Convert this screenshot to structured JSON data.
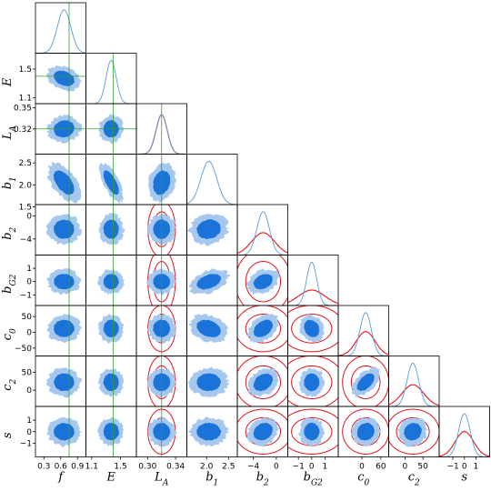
{
  "chart_data": {
    "type": "corner",
    "parameters": [
      {
        "key": "f",
        "label": "f",
        "range": [
          0.15,
          1.05
        ],
        "ticks": [
          0.3,
          0.6,
          0.9
        ],
        "tick_labels": [
          "0.3",
          "0.6",
          "0.9"
        ],
        "mean": 0.66,
        "sd": 0.12,
        "truth": 0.75
      },
      {
        "key": "E",
        "label": "E",
        "range": [
          1.02,
          1.72
        ],
        "ticks": [
          1.1,
          1.5
        ],
        "tick_labels": [
          "1.1",
          "1.5"
        ],
        "mean": 1.37,
        "sd": 0.07,
        "truth": 1.4
      },
      {
        "key": "LA",
        "label": "L",
        "label_sub": "A",
        "range": [
          0.284,
          0.356
        ],
        "ticks": [
          0.3,
          0.34
        ],
        "tick_labels": [
          "0.30",
          "0.34"
        ],
        "y_ticks": [
          0.32,
          0.35
        ],
        "y_tick_labels": [
          "0.32",
          "0.35"
        ],
        "mean": 0.32,
        "sd": 0.008,
        "truth": 0.32
      },
      {
        "key": "b1",
        "label": "b",
        "label_sub": "1",
        "range": [
          1.55,
          2.7
        ],
        "ticks": [
          2.0,
          2.5
        ],
        "tick_labels": [
          "2.0",
          "2.5"
        ],
        "y_ticks": [
          1.5,
          2.0,
          2.5
        ],
        "y_tick_labels": [
          "1.5",
          "2.0",
          "2.5"
        ],
        "mean": 2.05,
        "sd": 0.18,
        "truth": null
      },
      {
        "key": "b2",
        "label": "b",
        "label_sub": "2",
        "range": [
          -6.8,
          2.0
        ],
        "ticks": [
          -4,
          0
        ],
        "tick_labels": [
          "−4",
          "0"
        ],
        "mean": -2.3,
        "sd": 1.1,
        "truth": null
      },
      {
        "key": "bG2",
        "label": "b",
        "label_sub": "G2",
        "range": [
          -1.8,
          2.0
        ],
        "ticks": [
          -1,
          0,
          1
        ],
        "tick_labels": [
          "−1",
          "0",
          "1"
        ],
        "mean": 0.0,
        "sd": 0.38,
        "truth": null
      },
      {
        "key": "c0",
        "label": "c",
        "label_sub": "0",
        "range": [
          -75,
          85
        ],
        "ticks": [
          0,
          60
        ],
        "tick_labels": [
          "0",
          "60"
        ],
        "y_ticks": [
          -50,
          0,
          50
        ],
        "y_tick_labels": [
          "−50",
          "0",
          "50"
        ],
        "mean": 12,
        "sd": 18,
        "truth": null
      },
      {
        "key": "c2",
        "label": "c",
        "label_sub": "2",
        "range": [
          -45,
          95
        ],
        "ticks": [
          0,
          50
        ],
        "tick_labels": [
          "0",
          "50"
        ],
        "mean": 22,
        "sd": 16,
        "truth": null
      },
      {
        "key": "s",
        "label": "s",
        "range": [
          -2.2,
          2.2
        ],
        "ticks": [
          -1,
          0,
          1
        ],
        "tick_labels": [
          "−1",
          "0",
          "1"
        ],
        "mean": 0.0,
        "sd": 0.5,
        "truth": null
      }
    ],
    "prior_sd": {
      "LA": 0.008,
      "b2": 2.0,
      "bG2": 1.0,
      "c0": 30,
      "c2": 30,
      "s": 0.8
    },
    "correlations": {
      "E|f": -0.3,
      "LA|f": 0.1,
      "b1|f": -0.55,
      "b1|E": -0.7,
      "b1|LA": 0.2,
      "b2|b1": 0.1,
      "bG2|b1": 0.4,
      "bG2|b2": 0.3,
      "c0|b1": -0.3,
      "c0|b2": 0.4,
      "c0|bG2": -0.2,
      "c2|b2": 0.3,
      "c2|c0": 0.55,
      "s|b2": 0.2,
      "s|c0": 0.1,
      "s|c2": 0.1
    },
    "colors": {
      "contour_outer": "#a6c8ef",
      "contour_inner": "#1a73d9",
      "marginal": "#5b9bd5",
      "prior": "#e0141e",
      "truth": "#2ca02c"
    },
    "grid": false,
    "legend": "none"
  }
}
